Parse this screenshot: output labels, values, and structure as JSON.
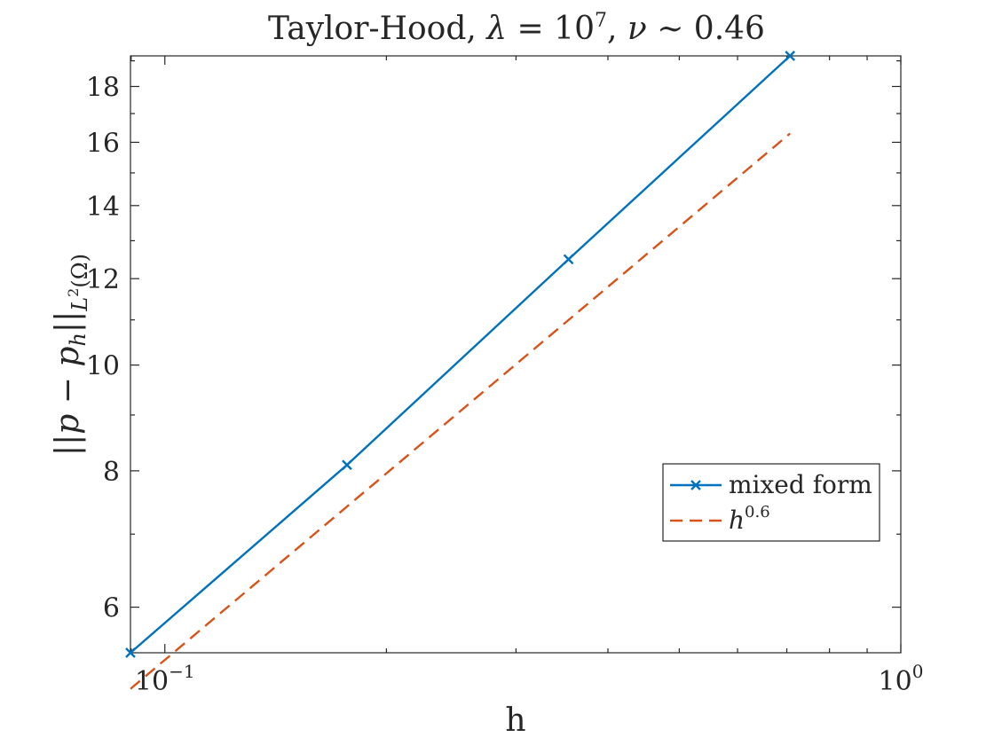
{
  "chart_data": {
    "type": "line",
    "title": {
      "prefix": "Taylor-Hood, ",
      "lambda_symbol": "λ",
      "lambda_eq": " = 10",
      "lambda_exp": "7",
      "sep": ", ",
      "nu_symbol": "ν",
      "nu_rest": " ∼ 0.46"
    },
    "xlabel": "h",
    "ylabel": {
      "open": "||",
      "p": "p",
      "minus": " − ",
      "ph": "p",
      "ph_sub": "h",
      "close": "||",
      "norm_sub": "L",
      "norm_sup": "2",
      "norm_arg": "(Ω)"
    },
    "x_scale": "log",
    "y_scale": "log",
    "xlim": [
      0.0898,
      1.0
    ],
    "ylim": [
      5.45,
      19.2
    ],
    "x_ticks": [
      {
        "value": 0.1,
        "base": "10",
        "exp": "−1"
      },
      {
        "value": 1.0,
        "base": "10",
        "exp": "0"
      }
    ],
    "y_ticks": [
      {
        "value": 6,
        "label": "6"
      },
      {
        "value": 8,
        "label": "8"
      },
      {
        "value": 10,
        "label": "10"
      },
      {
        "value": 12,
        "label": "12"
      },
      {
        "value": 14,
        "label": "14"
      },
      {
        "value": 16,
        "label": "16"
      },
      {
        "value": 18,
        "label": "18"
      }
    ],
    "grid": false,
    "box": true,
    "legend_position": "lower-right",
    "series": [
      {
        "name": "mixed form",
        "style": "solid",
        "marker": "x",
        "color": "#0072BD",
        "x": [
          0.0898,
          0.1768,
          0.3536,
          0.7071
        ],
        "y": [
          5.45,
          8.1,
          12.5,
          19.2
        ]
      },
      {
        "name": "h",
        "name_sup": "0.6",
        "style": "dashed",
        "marker": "none",
        "color": "#D95319",
        "x": [
          0.0898,
          0.7071
        ],
        "y": [
          5.05,
          16.3
        ]
      }
    ]
  }
}
